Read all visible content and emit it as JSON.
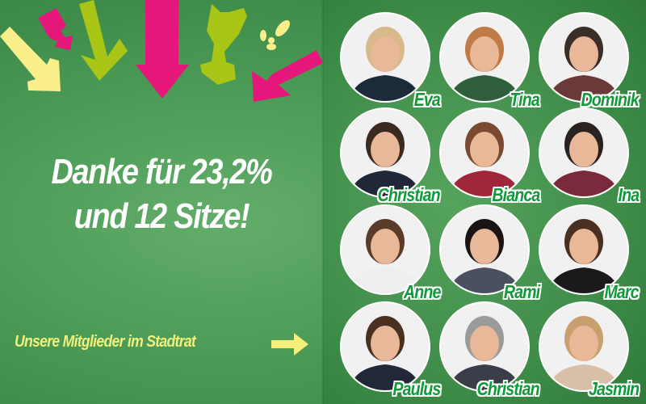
{
  "headline": {
    "line1": "Danke für 23,2%",
    "line2": "und 12 Sitze!"
  },
  "members_label": "Unsere Mitglieder im Stadtrat",
  "colors": {
    "pink": "#e5177b",
    "lime": "#a9c515",
    "yellow": "#fbef8c",
    "name_green": "#129a3a",
    "background": "#4a9a55"
  },
  "members": [
    {
      "name": "Eva",
      "hair": "#d8b98a",
      "shirt": "#1d2a3a"
    },
    {
      "name": "Tina",
      "hair": "#c07a45",
      "shirt": "#2e5e3a"
    },
    {
      "name": "Dominik",
      "hair": "#3a2e28",
      "shirt": "#6a3a3a"
    },
    {
      "name": "Christian",
      "hair": "#3b2a20",
      "shirt": "#202838"
    },
    {
      "name": "Bianca",
      "hair": "#7a4a30",
      "shirt": "#a0263a"
    },
    {
      "name": "Ina",
      "hair": "#2a2220",
      "shirt": "#7a2a3a"
    },
    {
      "name": "Anne",
      "hair": "#5a3a28",
      "shirt": "#eeeeee"
    },
    {
      "name": "Rami",
      "hair": "#1a1414",
      "shirt": "#4a5060"
    },
    {
      "name": "Marc",
      "hair": "#4a3020",
      "shirt": "#1a1a1a"
    },
    {
      "name": "Paulus",
      "hair": "#4a3020",
      "shirt": "#222838"
    },
    {
      "name": "Christian",
      "hair": "#9a9a9a",
      "shirt": "#3a3e48"
    },
    {
      "name": "Jasmin",
      "hair": "#c8a070",
      "shirt": "#d8c0a8"
    }
  ]
}
